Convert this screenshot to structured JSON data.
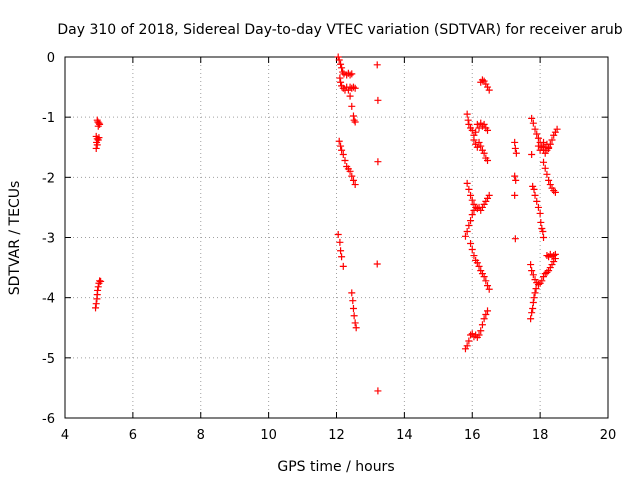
{
  "chart_data": {
    "type": "scatter",
    "title": "Day 310 of 2018, Sidereal Day-to-day VTEC variation (SDTVAR) for receiver arub",
    "xlabel": "GPS time / hours",
    "ylabel": "SDTVAR / TECUs",
    "xlim": [
      4,
      20
    ],
    "ylim": [
      -6,
      0
    ],
    "xticks": [
      4,
      6,
      8,
      10,
      12,
      14,
      16,
      18,
      20
    ],
    "yticks": [
      0,
      -1,
      -2,
      -3,
      -4,
      -5,
      -6
    ],
    "grid": true,
    "marker": "plus",
    "color": "#ff0000",
    "series": [
      {
        "name": "SDTVAR",
        "points": [
          [
            4.95,
            -1.05
          ],
          [
            4.97,
            -1.08
          ],
          [
            5.0,
            -1.1
          ],
          [
            5.02,
            -1.12
          ],
          [
            4.98,
            -1.15
          ],
          [
            4.92,
            -1.32
          ],
          [
            4.95,
            -1.36
          ],
          [
            4.98,
            -1.38
          ],
          [
            5.0,
            -1.34
          ],
          [
            4.93,
            -1.42
          ],
          [
            4.95,
            -1.46
          ],
          [
            4.92,
            -1.52
          ],
          [
            4.9,
            -4.17
          ],
          [
            4.92,
            -4.1
          ],
          [
            4.94,
            -4.02
          ],
          [
            4.95,
            -3.95
          ],
          [
            4.96,
            -3.88
          ],
          [
            4.98,
            -3.82
          ],
          [
            5.0,
            -3.76
          ],
          [
            5.02,
            -3.72
          ],
          [
            5.05,
            -3.73
          ],
          [
            12.05,
            0.0
          ],
          [
            12.08,
            -0.05
          ],
          [
            12.12,
            -0.12
          ],
          [
            12.15,
            -0.18
          ],
          [
            12.18,
            -0.25
          ],
          [
            12.22,
            -0.28
          ],
          [
            12.3,
            -0.3
          ],
          [
            12.35,
            -0.27
          ],
          [
            12.4,
            -0.3
          ],
          [
            12.45,
            -0.28
          ],
          [
            12.1,
            -0.35
          ],
          [
            12.12,
            -0.42
          ],
          [
            12.15,
            -0.48
          ],
          [
            12.2,
            -0.52
          ],
          [
            12.25,
            -0.55
          ],
          [
            12.3,
            -0.5
          ],
          [
            12.35,
            -0.55
          ],
          [
            12.4,
            -0.5
          ],
          [
            12.45,
            -0.52
          ],
          [
            12.5,
            -0.5
          ],
          [
            12.55,
            -0.52
          ],
          [
            12.4,
            -0.65
          ],
          [
            12.45,
            -0.82
          ],
          [
            12.5,
            -0.98
          ],
          [
            12.52,
            -1.05
          ],
          [
            12.55,
            -1.08
          ],
          [
            12.08,
            -1.4
          ],
          [
            12.12,
            -1.48
          ],
          [
            12.15,
            -1.55
          ],
          [
            12.2,
            -1.62
          ],
          [
            12.25,
            -1.72
          ],
          [
            12.3,
            -1.82
          ],
          [
            12.35,
            -1.86
          ],
          [
            12.4,
            -1.9
          ],
          [
            12.45,
            -1.98
          ],
          [
            12.5,
            -2.05
          ],
          [
            12.55,
            -2.12
          ],
          [
            12.05,
            -2.95
          ],
          [
            12.1,
            -3.08
          ],
          [
            12.12,
            -3.22
          ],
          [
            12.15,
            -3.32
          ],
          [
            12.2,
            -3.48
          ],
          [
            12.45,
            -3.92
          ],
          [
            12.48,
            -4.05
          ],
          [
            12.5,
            -4.18
          ],
          [
            12.52,
            -4.3
          ],
          [
            12.55,
            -4.42
          ],
          [
            12.58,
            -4.5
          ],
          [
            13.2,
            -0.13
          ],
          [
            13.22,
            -0.72
          ],
          [
            13.22,
            -1.74
          ],
          [
            13.2,
            -3.44
          ],
          [
            13.22,
            -5.55
          ],
          [
            15.85,
            -0.95
          ],
          [
            15.88,
            -1.05
          ],
          [
            15.9,
            -1.12
          ],
          [
            15.95,
            -1.18
          ],
          [
            16.0,
            -1.22
          ],
          [
            16.05,
            -1.3
          ],
          [
            16.1,
            -1.25
          ],
          [
            16.15,
            -1.12
          ],
          [
            16.2,
            -1.18
          ],
          [
            16.25,
            -1.1
          ],
          [
            16.3,
            -1.15
          ],
          [
            16.35,
            -1.12
          ],
          [
            16.4,
            -1.18
          ],
          [
            16.45,
            -1.22
          ],
          [
            16.05,
            -1.38
          ],
          [
            16.1,
            -1.45
          ],
          [
            16.15,
            -1.5
          ],
          [
            16.2,
            -1.42
          ],
          [
            16.25,
            -1.48
          ],
          [
            16.3,
            -1.55
          ],
          [
            16.35,
            -1.6
          ],
          [
            16.4,
            -1.68
          ],
          [
            16.45,
            -1.72
          ],
          [
            16.25,
            -0.42
          ],
          [
            16.3,
            -0.38
          ],
          [
            16.35,
            -0.4
          ],
          [
            16.4,
            -0.45
          ],
          [
            16.45,
            -0.5
          ],
          [
            16.5,
            -0.55
          ],
          [
            15.85,
            -2.1
          ],
          [
            15.9,
            -2.2
          ],
          [
            15.95,
            -2.3
          ],
          [
            16.0,
            -2.38
          ],
          [
            16.05,
            -2.45
          ],
          [
            16.1,
            -2.5
          ],
          [
            16.15,
            -2.52
          ],
          [
            16.2,
            -2.5
          ],
          [
            16.25,
            -2.55
          ],
          [
            16.3,
            -2.5
          ],
          [
            16.35,
            -2.45
          ],
          [
            16.4,
            -2.4
          ],
          [
            16.45,
            -2.35
          ],
          [
            16.5,
            -2.3
          ],
          [
            15.8,
            -2.98
          ],
          [
            15.85,
            -2.9
          ],
          [
            15.9,
            -2.8
          ],
          [
            15.95,
            -2.72
          ],
          [
            16.0,
            -2.62
          ],
          [
            16.05,
            -2.55
          ],
          [
            15.95,
            -3.1
          ],
          [
            16.0,
            -3.2
          ],
          [
            16.05,
            -3.3
          ],
          [
            16.1,
            -3.38
          ],
          [
            16.15,
            -3.42
          ],
          [
            16.2,
            -3.48
          ],
          [
            16.25,
            -3.55
          ],
          [
            16.3,
            -3.6
          ],
          [
            16.35,
            -3.65
          ],
          [
            16.4,
            -3.72
          ],
          [
            16.45,
            -3.8
          ],
          [
            16.5,
            -3.86
          ],
          [
            15.8,
            -4.85
          ],
          [
            15.85,
            -4.8
          ],
          [
            15.9,
            -4.72
          ],
          [
            15.95,
            -4.62
          ],
          [
            16.0,
            -4.6
          ],
          [
            16.05,
            -4.65
          ],
          [
            16.1,
            -4.62
          ],
          [
            16.15,
            -4.66
          ],
          [
            16.2,
            -4.62
          ],
          [
            16.25,
            -4.55
          ],
          [
            16.3,
            -4.45
          ],
          [
            16.35,
            -4.35
          ],
          [
            16.4,
            -4.28
          ],
          [
            16.45,
            -4.22
          ],
          [
            17.25,
            -1.42
          ],
          [
            17.27,
            -1.52
          ],
          [
            17.3,
            -1.6
          ],
          [
            17.25,
            -1.98
          ],
          [
            17.28,
            -2.05
          ],
          [
            17.25,
            -2.3
          ],
          [
            17.27,
            -3.02
          ],
          [
            17.75,
            -1.02
          ],
          [
            17.8,
            -1.1
          ],
          [
            17.85,
            -1.2
          ],
          [
            17.9,
            -1.28
          ],
          [
            17.95,
            -1.35
          ],
          [
            18.0,
            -1.42
          ],
          [
            18.05,
            -1.5
          ],
          [
            18.1,
            -1.55
          ],
          [
            18.15,
            -1.6
          ],
          [
            18.2,
            -1.55
          ],
          [
            18.25,
            -1.5
          ],
          [
            18.3,
            -1.45
          ],
          [
            18.35,
            -1.38
          ],
          [
            18.4,
            -1.3
          ],
          [
            18.45,
            -1.25
          ],
          [
            18.5,
            -1.2
          ],
          [
            17.75,
            -1.62
          ],
          [
            17.95,
            -1.48
          ],
          [
            18.0,
            -1.55
          ],
          [
            18.05,
            -1.48
          ],
          [
            18.1,
            -1.42
          ],
          [
            18.15,
            -1.5
          ],
          [
            18.2,
            -1.45
          ],
          [
            18.25,
            -1.52
          ],
          [
            18.1,
            -1.75
          ],
          [
            18.15,
            -1.85
          ],
          [
            18.2,
            -1.95
          ],
          [
            18.25,
            -2.05
          ],
          [
            18.3,
            -2.12
          ],
          [
            18.35,
            -2.18
          ],
          [
            18.4,
            -2.22
          ],
          [
            18.45,
            -2.25
          ],
          [
            17.78,
            -2.15
          ],
          [
            17.82,
            -2.2
          ],
          [
            17.85,
            -2.3
          ],
          [
            17.9,
            -2.4
          ],
          [
            17.95,
            -2.5
          ],
          [
            18.0,
            -2.6
          ],
          [
            18.02,
            -2.75
          ],
          [
            18.05,
            -2.85
          ],
          [
            18.08,
            -2.9
          ],
          [
            18.1,
            -3.0
          ],
          [
            17.72,
            -3.45
          ],
          [
            17.75,
            -3.55
          ],
          [
            17.8,
            -3.62
          ],
          [
            17.85,
            -3.7
          ],
          [
            17.9,
            -3.75
          ],
          [
            17.95,
            -3.78
          ],
          [
            18.0,
            -3.76
          ],
          [
            18.05,
            -3.72
          ],
          [
            18.1,
            -3.65
          ],
          [
            18.15,
            -3.6
          ],
          [
            18.2,
            -3.58
          ],
          [
            18.25,
            -3.55
          ],
          [
            18.3,
            -3.5
          ],
          [
            18.35,
            -3.45
          ],
          [
            18.4,
            -3.4
          ],
          [
            18.45,
            -3.35
          ],
          [
            17.72,
            -4.35
          ],
          [
            17.75,
            -4.25
          ],
          [
            17.78,
            -4.18
          ],
          [
            17.8,
            -4.08
          ],
          [
            17.82,
            -4.0
          ],
          [
            17.85,
            -3.92
          ],
          [
            17.88,
            -3.85
          ],
          [
            18.2,
            -3.3
          ],
          [
            18.25,
            -3.32
          ],
          [
            18.3,
            -3.28
          ],
          [
            18.35,
            -3.32
          ],
          [
            18.4,
            -3.3
          ],
          [
            18.45,
            -3.28
          ]
        ]
      }
    ]
  }
}
